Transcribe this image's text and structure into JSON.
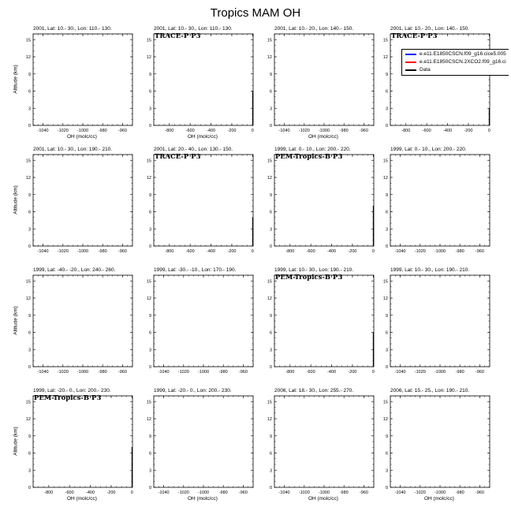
{
  "title": "Tropics MAM OH",
  "legend": {
    "items": [
      {
        "label": "e.e11.E1850CSCN.f09_g16.cice5.005",
        "color": "#0000ff"
      },
      {
        "label": "e.e11.E1850CSCN.2XCO2.f09_g16.ci",
        "color": "#ff0000"
      },
      {
        "label": "Data",
        "color": "#000000"
      }
    ]
  },
  "chart_data": [
    {
      "type": "line",
      "title": "2001, Lat: 10.- 30., Lon: 110.- 130.",
      "mission": "",
      "xlabel": "OH (molc/cc)",
      "ylabel": "Altitude (km)",
      "xticks": [
        -1040,
        -1020,
        -1000,
        -980,
        -960
      ],
      "xlim": [
        -1050,
        -950
      ],
      "yticks": [
        0,
        3,
        6,
        9,
        12,
        15
      ],
      "ylim": [
        0,
        16
      ],
      "series": []
    },
    {
      "type": "line",
      "title": "2001, Lat: 10.- 30., Lon: 110.- 130.",
      "mission": "TRACE-P P3",
      "xlabel": "OH (molc/cc)",
      "ylabel": "",
      "xticks": [
        -800,
        -600,
        -400,
        -200,
        0
      ],
      "xlim": [
        -950,
        5
      ],
      "yticks": [
        0,
        3,
        6,
        9,
        12,
        15
      ],
      "ylim": [
        0,
        16
      ],
      "series": [
        {
          "x": [
            0,
            0
          ],
          "y": [
            0,
            6
          ]
        }
      ]
    },
    {
      "type": "line",
      "title": "2001, Lat: 10.- 20., Lon: 140.- 150.",
      "mission": "",
      "xlabel": "OH (molc/cc)",
      "ylabel": "",
      "xticks": [
        -1040,
        -1020,
        -1000,
        -980,
        -960
      ],
      "xlim": [
        -1050,
        -950
      ],
      "yticks": [
        0,
        3,
        6,
        9,
        12,
        15
      ],
      "ylim": [
        0,
        16
      ],
      "series": []
    },
    {
      "type": "line",
      "title": "2001, Lat: 10.- 20., Lon: 140.- 150.",
      "mission": "TRACE-P P3",
      "xlabel": "",
      "ylabel": "",
      "xticks": [
        -800,
        -600,
        -400,
        -200,
        0
      ],
      "xlim": [
        -950,
        5
      ],
      "yticks": [
        0,
        3,
        6,
        9,
        12,
        15
      ],
      "ylim": [
        0,
        16
      ],
      "series": [
        {
          "x": [
            0,
            0
          ],
          "y": [
            0,
            3
          ]
        }
      ]
    },
    {
      "type": "line",
      "title": "2001, Lat: 10.- 30., Lon: 190.- 210.",
      "mission": "",
      "xlabel": "",
      "ylabel": "Altitude (km)",
      "xticks": [
        -1040,
        -1020,
        -1000,
        -980,
        -960
      ],
      "xlim": [
        -1050,
        -950
      ],
      "yticks": [
        0,
        3,
        6,
        9,
        12,
        15
      ],
      "ylim": [
        0,
        16
      ],
      "series": []
    },
    {
      "type": "line",
      "title": "2001, Lat: 20.- 40., Lon: 130.- 150.",
      "mission": "TRACE-P P3",
      "xlabel": "",
      "ylabel": "",
      "xticks": [
        -800,
        -600,
        -400,
        -200,
        0
      ],
      "xlim": [
        -950,
        5
      ],
      "yticks": [
        0,
        3,
        6,
        9,
        12,
        15
      ],
      "ylim": [
        0,
        16
      ],
      "series": [
        {
          "x": [
            0,
            0
          ],
          "y": [
            0,
            5
          ]
        }
      ]
    },
    {
      "type": "line",
      "title": "1999, Lat: 0.- 10., Lon: 200.- 220.",
      "mission": "PEM-Tropics-B P3",
      "xlabel": "",
      "ylabel": "",
      "xticks": [
        -800,
        -600,
        -400,
        -200,
        0
      ],
      "xlim": [
        -950,
        5
      ],
      "yticks": [
        0,
        3,
        6,
        9,
        12,
        15
      ],
      "ylim": [
        0,
        16
      ],
      "series": [
        {
          "x": [
            0,
            0
          ],
          "y": [
            0,
            7
          ]
        }
      ]
    },
    {
      "type": "line",
      "title": "1999, Lat: 0.- 10., Lon: 200.- 220.",
      "mission": "",
      "xlabel": "",
      "ylabel": "",
      "xticks": [
        -1040,
        -1020,
        -1000,
        -980,
        -960
      ],
      "xlim": [
        -1050,
        -950
      ],
      "yticks": [
        0,
        3,
        6,
        9,
        12,
        15
      ],
      "ylim": [
        0,
        16
      ],
      "series": []
    },
    {
      "type": "line",
      "title": "1999, Lat: -40.- -20., Lon: 240.- 260.",
      "mission": "",
      "xlabel": "",
      "ylabel": "Altitude (km)",
      "xticks": [
        -1040,
        -1020,
        -1000,
        -980,
        -960
      ],
      "xlim": [
        -1050,
        -950
      ],
      "yticks": [
        0,
        3,
        6,
        9,
        12,
        15
      ],
      "ylim": [
        0,
        16
      ],
      "series": []
    },
    {
      "type": "line",
      "title": "1999, Lat: -30.- -10., Lon: 170.- 190.",
      "mission": "",
      "xlabel": "",
      "ylabel": "",
      "xticks": [
        -1040,
        -1020,
        -1000,
        -980,
        -960
      ],
      "xlim": [
        -1050,
        -950
      ],
      "yticks": [
        0,
        3,
        6,
        9,
        12,
        15
      ],
      "ylim": [
        0,
        16
      ],
      "series": []
    },
    {
      "type": "line",
      "title": "1999, Lat: 10.- 30., Lon: 190.- 210.",
      "mission": "PEM-Tropics-B P3",
      "xlabel": "",
      "ylabel": "",
      "xticks": [
        -800,
        -600,
        -400,
        -200,
        0
      ],
      "xlim": [
        -950,
        5
      ],
      "yticks": [
        0,
        3,
        6,
        9,
        12,
        15
      ],
      "ylim": [
        0,
        16
      ],
      "series": [
        {
          "x": [
            0,
            0
          ],
          "y": [
            0,
            6
          ]
        }
      ]
    },
    {
      "type": "line",
      "title": "1999, Lat: 10.- 30., Lon: 190.- 210.",
      "mission": "",
      "xlabel": "",
      "ylabel": "",
      "xticks": [
        -1040,
        -1020,
        -1000,
        -980,
        -960
      ],
      "xlim": [
        -1050,
        -950
      ],
      "yticks": [
        0,
        3,
        6,
        9,
        12,
        15
      ],
      "ylim": [
        0,
        16
      ],
      "series": []
    },
    {
      "type": "line",
      "title": "1999, Lat: -20.- 0., Lon: 200.- 230.",
      "mission": "PEM-Tropics-B P3",
      "xlabel": "OH (molc/cc)",
      "ylabel": "Altitude (km)",
      "xticks": [
        -800,
        -600,
        -400,
        -200,
        0
      ],
      "xlim": [
        -950,
        5
      ],
      "yticks": [
        0,
        3,
        6,
        9,
        12,
        15
      ],
      "ylim": [
        0,
        16
      ],
      "series": [
        {
          "x": [
            0,
            0
          ],
          "y": [
            0,
            7
          ]
        }
      ]
    },
    {
      "type": "line",
      "title": "1999, Lat: -20.- 0., Lon: 200.- 230.",
      "mission": "",
      "xlabel": "OH (molc/cc)",
      "ylabel": "",
      "xticks": [
        -1040,
        -1020,
        -1000,
        -980,
        -960
      ],
      "xlim": [
        -1050,
        -950
      ],
      "yticks": [
        0,
        3,
        6,
        9,
        12,
        15
      ],
      "ylim": [
        0,
        16
      ],
      "series": []
    },
    {
      "type": "line",
      "title": "2006, Lat: 18.- 30., Lon: 255.- 270.",
      "mission": "",
      "xlabel": "OH (molc/cc)",
      "ylabel": "",
      "xticks": [
        -1040,
        -1020,
        -1000,
        -980,
        -960
      ],
      "xlim": [
        -1050,
        -950
      ],
      "yticks": [
        0,
        3,
        6,
        9,
        12,
        15
      ],
      "ylim": [
        0,
        16
      ],
      "series": []
    },
    {
      "type": "line",
      "title": "2006, Lat: 15.- 25., Lon: 190.- 210.",
      "mission": "",
      "xlabel": "OH (molc/cc)",
      "ylabel": "",
      "xticks": [
        -1040,
        -1020,
        -1000,
        -980,
        -960
      ],
      "xlim": [
        -1050,
        -950
      ],
      "yticks": [
        0,
        3,
        6,
        9,
        12,
        15
      ],
      "ylim": [
        0,
        16
      ],
      "series": []
    }
  ]
}
